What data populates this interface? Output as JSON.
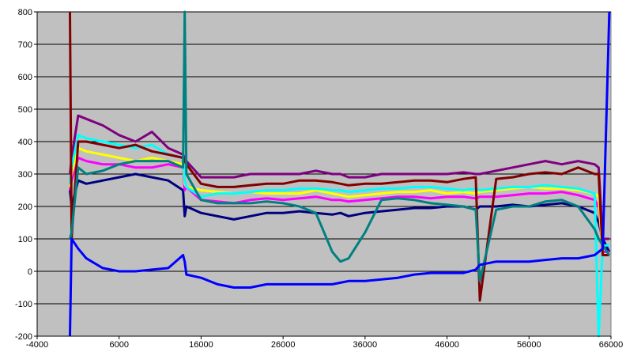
{
  "chart_data": {
    "type": "line",
    "x": [
      0,
      200,
      1000,
      2000,
      4000,
      6000,
      8000,
      10000,
      12000,
      13800,
      14000,
      14200,
      16000,
      18000,
      20000,
      22000,
      24000,
      26000,
      28000,
      30000,
      32000,
      33000,
      34000,
      36000,
      38000,
      40000,
      42000,
      44000,
      46000,
      48000,
      49500,
      50000,
      52000,
      54000,
      56000,
      58000,
      60000,
      62000,
      64000,
      64500,
      65000,
      65800
    ],
    "series": [
      {
        "color": "#000080",
        "values": [
          250,
          200,
          280,
          270,
          280,
          290,
          300,
          290,
          280,
          250,
          170,
          200,
          180,
          170,
          160,
          170,
          180,
          180,
          185,
          180,
          175,
          180,
          170,
          180,
          185,
          190,
          195,
          195,
          200,
          200,
          190,
          200,
          200,
          205,
          200,
          205,
          210,
          200,
          180,
          150,
          100,
          60
        ]
      },
      {
        "color": "#800080",
        "values": [
          300,
          350,
          480,
          470,
          450,
          420,
          400,
          430,
          380,
          360,
          350,
          340,
          290,
          290,
          290,
          300,
          300,
          300,
          300,
          310,
          300,
          300,
          290,
          290,
          300,
          300,
          300,
          300,
          300,
          305,
          300,
          300,
          310,
          320,
          330,
          340,
          330,
          340,
          330,
          320,
          100,
          100
        ]
      },
      {
        "color": "#ff00ff",
        "values": [
          250,
          280,
          350,
          340,
          330,
          330,
          320,
          320,
          330,
          320,
          250,
          260,
          220,
          215,
          210,
          220,
          225,
          220,
          225,
          230,
          220,
          220,
          215,
          220,
          225,
          230,
          230,
          225,
          230,
          230,
          225,
          230,
          230,
          235,
          240,
          240,
          245,
          235,
          220,
          200,
          60,
          60
        ]
      },
      {
        "color": "#ffff00",
        "values": [
          260,
          300,
          380,
          370,
          360,
          350,
          340,
          350,
          340,
          330,
          270,
          260,
          250,
          245,
          240,
          245,
          240,
          240,
          240,
          250,
          240,
          235,
          230,
          235,
          240,
          245,
          245,
          250,
          240,
          245,
          240,
          245,
          250,
          255,
          260,
          255,
          255,
          250,
          240,
          230,
          50,
          50
        ]
      },
      {
        "color": "#00ffff",
        "values": [
          270,
          320,
          420,
          410,
          400,
          390,
          380,
          390,
          360,
          350,
          280,
          260,
          230,
          240,
          240,
          245,
          250,
          250,
          255,
          255,
          250,
          250,
          245,
          250,
          255,
          255,
          260,
          260,
          255,
          250,
          255,
          250,
          255,
          260,
          260,
          265,
          260,
          255,
          240,
          -200,
          80,
          80
        ]
      },
      {
        "color": "#800000",
        "values": [
          800,
          100,
          400,
          400,
          390,
          380,
          390,
          370,
          360,
          350,
          340,
          330,
          270,
          260,
          260,
          265,
          270,
          270,
          280,
          280,
          275,
          270,
          265,
          270,
          270,
          275,
          280,
          280,
          275,
          285,
          290,
          -90,
          285,
          290,
          300,
          305,
          300,
          320,
          300,
          300,
          50,
          50
        ]
      },
      {
        "color": "#008080",
        "values": [
          100,
          120,
          320,
          300,
          310,
          330,
          340,
          340,
          340,
          320,
          800,
          300,
          220,
          210,
          210,
          210,
          215,
          210,
          200,
          180,
          60,
          30,
          40,
          120,
          220,
          225,
          220,
          210,
          205,
          200,
          190,
          -30,
          190,
          200,
          200,
          215,
          220,
          200,
          130,
          100,
          80,
          50
        ]
      },
      {
        "color": "#0000ff",
        "values": [
          -200,
          100,
          70,
          40,
          10,
          0,
          0,
          5,
          10,
          50,
          30,
          -10,
          -20,
          -40,
          -50,
          -50,
          -40,
          -40,
          -40,
          -40,
          -40,
          -35,
          -30,
          -30,
          -25,
          -20,
          -10,
          -5,
          -5,
          -5,
          5,
          20,
          30,
          30,
          30,
          35,
          40,
          40,
          50,
          60,
          70,
          800
        ]
      }
    ],
    "xlim": [
      -4000,
      66000
    ],
    "xticks": [
      -4000,
      6000,
      16000,
      26000,
      36000,
      46000,
      56000,
      66000
    ],
    "ylim": [
      -200,
      800
    ],
    "yticks": [
      -200,
      -100,
      0,
      100,
      200,
      300,
      400,
      500,
      600,
      700,
      800
    ],
    "grid": true,
    "background": "#c0c0c0"
  }
}
